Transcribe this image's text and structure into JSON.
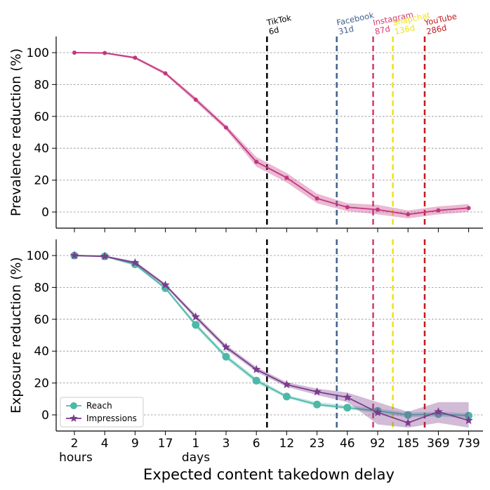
{
  "colors": {
    "prevalence": "#c2367f",
    "reach": "#4db8a8",
    "impressions": "#7b3c8c",
    "grid": "#888888",
    "axis": "#000000"
  },
  "xlabel": "Expected content takedown delay",
  "x_tick_labels": [
    "2",
    "4",
    "9",
    "17",
    "1",
    "3",
    "6",
    "12",
    "23",
    "46",
    "92",
    "185",
    "369",
    "739"
  ],
  "x_unit_labels": [
    "hours",
    "days"
  ],
  "platforms": [
    {
      "name": "TikTok",
      "delay": "6d",
      "pos": 6.35,
      "color": "#000000"
    },
    {
      "name": "Facebook",
      "delay": "31d",
      "pos": 8.65,
      "color": "#3f5f8f"
    },
    {
      "name": "Instagram",
      "delay": "87d",
      "pos": 9.85,
      "color": "#d23a6e"
    },
    {
      "name": "Snapchat",
      "delay": "136d",
      "pos": 10.5,
      "color": "#f0e21a"
    },
    {
      "name": "YouTube",
      "delay": "286d",
      "pos": 11.55,
      "color": "#c2191f"
    }
  ],
  "chart_data": [
    {
      "type": "line",
      "title": "",
      "xlabel": "Expected content takedown delay",
      "ylabel": "Prevalence reduction (%)",
      "ylim": [
        -10,
        110
      ],
      "yticks": [
        0,
        20,
        40,
        60,
        80,
        100
      ],
      "grid": true,
      "categories": [
        "2 hours",
        "4 hours",
        "9 hours",
        "17 hours",
        "1 day",
        "3 days",
        "6 days",
        "12 days",
        "23 days",
        "46 days",
        "92 days",
        "185 days",
        "369 days",
        "739 days"
      ],
      "series": [
        {
          "name": "Prevalence",
          "marker": "dot",
          "values": [
            100,
            99.8,
            96.8,
            87,
            70.5,
            53,
            31.5,
            21.5,
            8.5,
            3,
            1.5,
            -1.5,
            1,
            2.5
          ],
          "lower": [
            99.5,
            99.3,
            96,
            86,
            69,
            51.5,
            28.5,
            18.5,
            5.5,
            0.5,
            -1.5,
            -4,
            -1.5,
            0
          ],
          "upper": [
            100.5,
            100.3,
            97.6,
            88,
            72,
            54.5,
            34.5,
            24.5,
            11.5,
            5.5,
            4.5,
            1,
            3.5,
            5
          ]
        }
      ]
    },
    {
      "type": "line",
      "title": "",
      "xlabel": "Expected content takedown delay",
      "ylabel": "Exposure reduction (%)",
      "ylim": [
        -10,
        110
      ],
      "yticks": [
        0,
        20,
        40,
        60,
        80,
        100
      ],
      "grid": true,
      "legend": "bottom-left",
      "categories": [
        "2 hours",
        "4 hours",
        "9 hours",
        "17 hours",
        "1 day",
        "3 days",
        "6 days",
        "12 days",
        "23 days",
        "46 days",
        "92 days",
        "185 days",
        "369 days",
        "739 days"
      ],
      "series": [
        {
          "name": "Reach",
          "marker": "circle",
          "values": [
            100,
            99.5,
            94.5,
            79.5,
            56.5,
            36.5,
            21.5,
            11.5,
            6.5,
            4.5,
            2.5,
            0,
            0.5,
            -0.5
          ],
          "lower": [
            99.5,
            99,
            93.5,
            78.5,
            55,
            35,
            20,
            10.5,
            5.5,
            3.5,
            1,
            -1.5,
            -1,
            -2
          ],
          "upper": [
            100.5,
            100,
            95.5,
            80.5,
            58,
            38,
            23,
            12.5,
            8,
            6,
            4,
            1.5,
            2,
            1
          ]
        },
        {
          "name": "Impressions",
          "marker": "star",
          "values": [
            100,
            99.5,
            95.5,
            81.5,
            61.5,
            42.5,
            28.5,
            19,
            14.5,
            11,
            1.5,
            -5,
            2,
            -3.5
          ],
          "lower": [
            99.5,
            99,
            94.5,
            80.5,
            60,
            41,
            27,
            17.5,
            12.5,
            8,
            -6,
            -8,
            -5,
            -8
          ],
          "upper": [
            100.5,
            100,
            96.5,
            82.5,
            63,
            44,
            30,
            20.5,
            16.5,
            14,
            8,
            2,
            8,
            8
          ]
        }
      ]
    }
  ]
}
